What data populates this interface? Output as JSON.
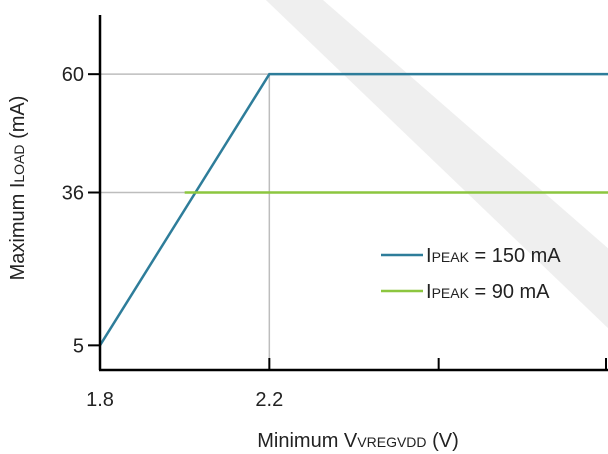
{
  "chart_data": {
    "type": "line",
    "title": "",
    "xlabel": {
      "prefix": "Minimum V",
      "subscript": "VREGVDD",
      "suffix": " (V)"
    },
    "ylabel": {
      "prefix": "Maximum I",
      "subscript": "LOAD",
      "suffix": " (mA)"
    },
    "xlim": [
      1.8,
      3.0
    ],
    "ylim": [
      0,
      72
    ],
    "x_ticks": [
      1.8,
      2.2,
      2.6,
      3.0
    ],
    "x_tick_labels": [
      "1.8",
      "2.2",
      "",
      ""
    ],
    "y_ticks": [
      5,
      36,
      60
    ],
    "y_tick_labels": [
      "5",
      "36",
      "60"
    ],
    "reference_lines": {
      "x": [
        2.2
      ],
      "y": [
        36,
        60
      ]
    },
    "series": [
      {
        "name": {
          "prefix": "I",
          "subscript": "PEAK",
          "suffix": " = 150 mA"
        },
        "color": "#2e7d9a",
        "x": [
          1.8,
          2.2,
          3.0
        ],
        "y": [
          5,
          60,
          60
        ]
      },
      {
        "name": {
          "prefix": "I",
          "subscript": "PEAK",
          "suffix": " = 90 mA"
        },
        "color": "#8cc63f",
        "x": [
          2.0,
          3.0
        ],
        "y": [
          36,
          36
        ]
      }
    ],
    "legend_position": "center-right",
    "watermark_color": "#e8e8e8"
  }
}
